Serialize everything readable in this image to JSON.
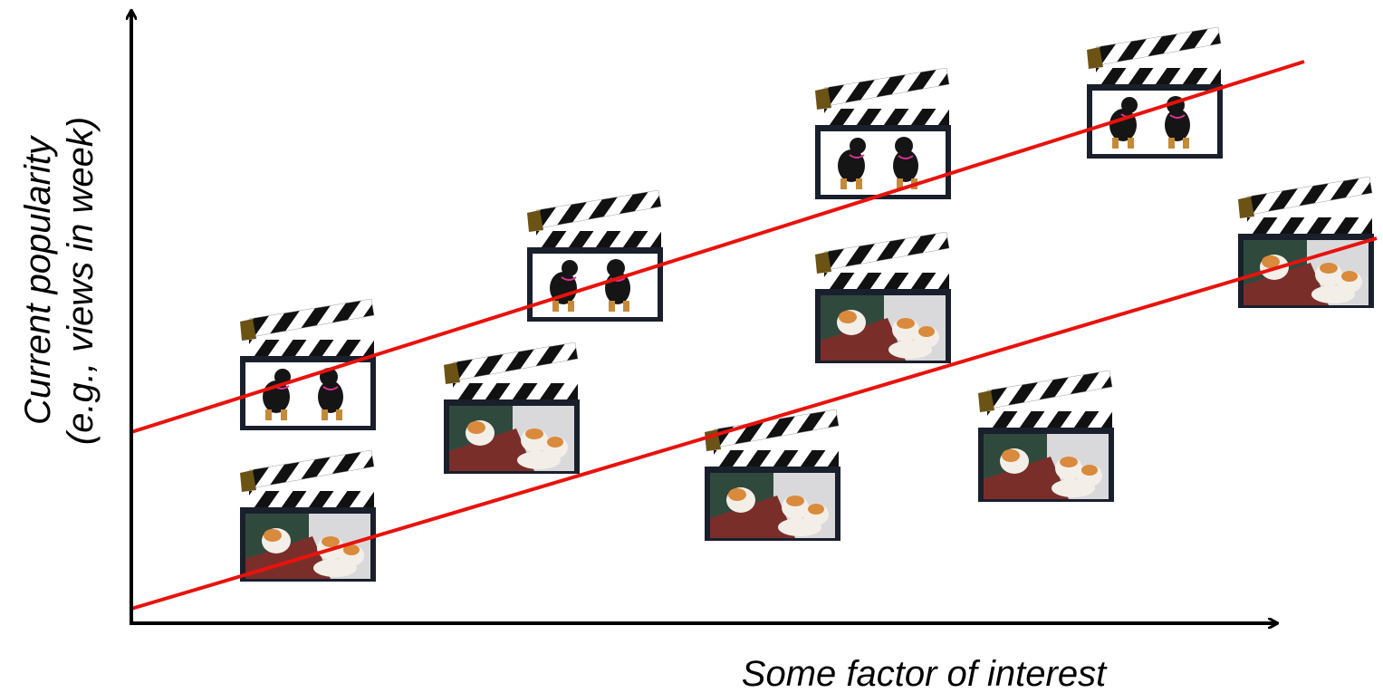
{
  "axes": {
    "y_label": [
      "Current popularity",
      "(e.g., views in week)"
    ],
    "x_label": "Some factor of interest"
  }
}
